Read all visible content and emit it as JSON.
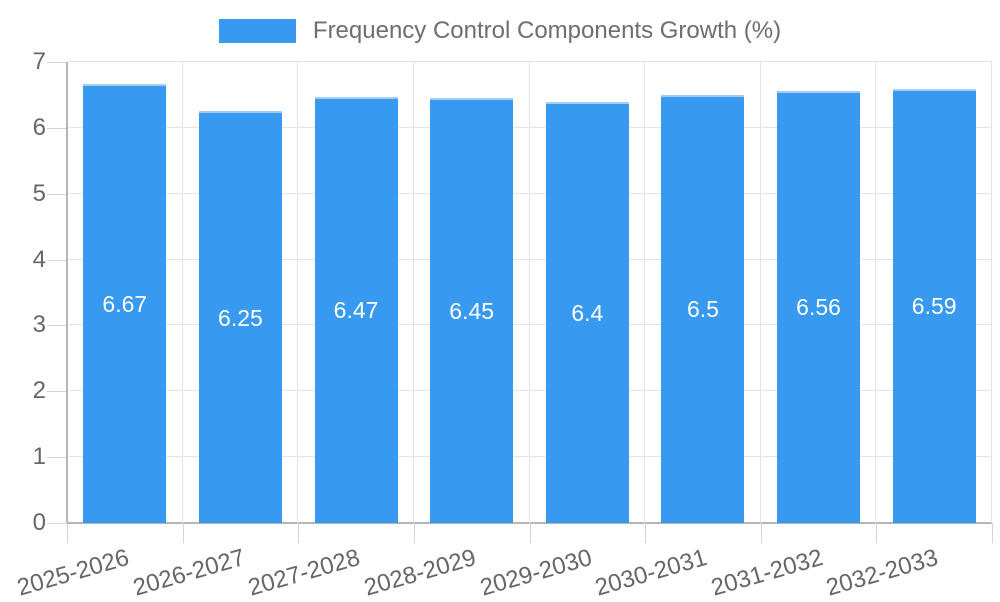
{
  "chart_data": {
    "type": "bar",
    "title": "Frequency Control Components Growth (%)",
    "categories": [
      "2025-2026",
      "2026-2027",
      "2027-2028",
      "2028-2029",
      "2029-2030",
      "2030-2031",
      "2031-2032",
      "2032-2033"
    ],
    "values": [
      6.67,
      6.25,
      6.47,
      6.45,
      6.4,
      6.5,
      6.56,
      6.59
    ],
    "value_labels": [
      "6.67",
      "6.25",
      "6.47",
      "6.45",
      "6.4",
      "6.5",
      "6.56",
      "6.59"
    ],
    "y_ticks": [
      "0",
      "1",
      "2",
      "3",
      "4",
      "5",
      "6",
      "7"
    ],
    "ylim": [
      0,
      7
    ],
    "xlabel": "",
    "ylabel": "",
    "grid": true,
    "legend_position": "top",
    "colors": {
      "bar": "#3899F0",
      "bar_top_edge": "#A5CCF4",
      "bar_label_text": "#FFFFFF",
      "grid": "#E5E5E5",
      "axis": "#B5B5B5",
      "tick": "#D4D4D4",
      "axis_text": "#666666",
      "title_text": "#6E6E6E",
      "background": "#FFFFFF"
    }
  }
}
